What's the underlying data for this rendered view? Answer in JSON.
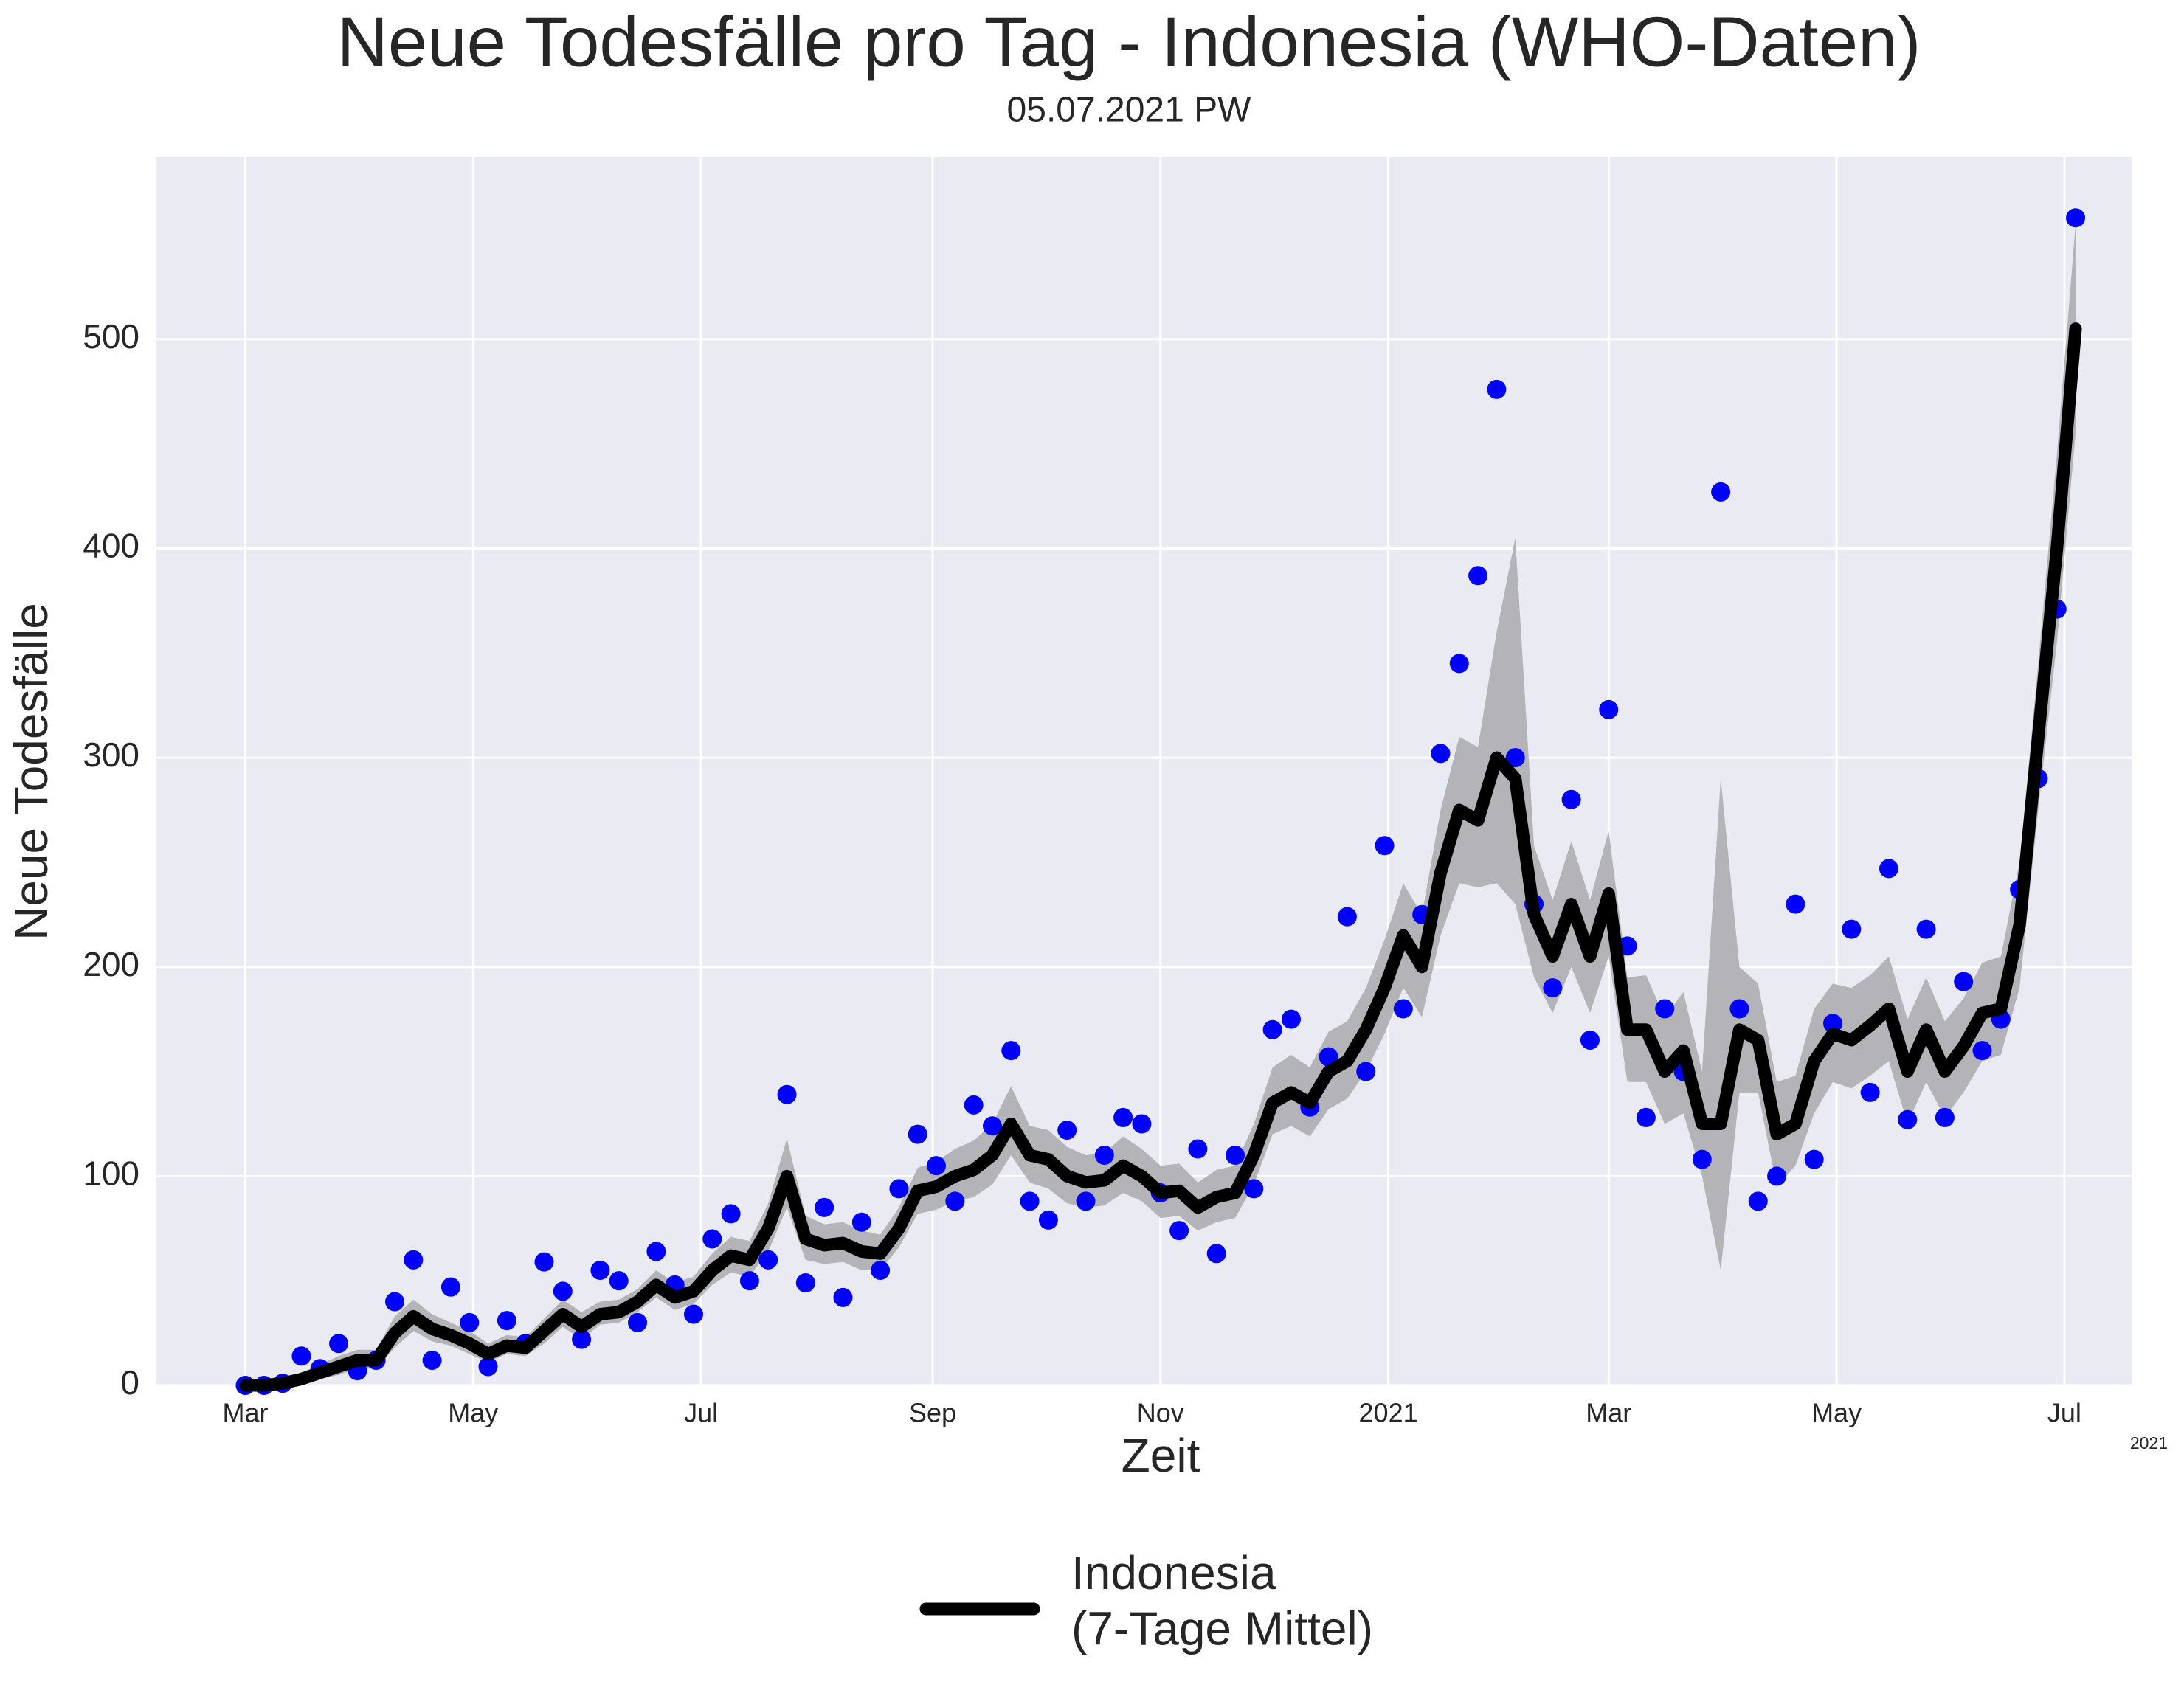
{
  "chart_data": {
    "type": "line",
    "title": "Neue Todesfälle pro Tag - Indonesia (WHO-Daten)",
    "subtitle": "05.07.2021 PW",
    "x_label": "Zeit",
    "y_label": "Neue Todesfälle",
    "x_offset_label": "2021",
    "background": "#eaeaf2",
    "grid": true,
    "legend_position": "bottom",
    "xlim": [
      -24,
      505
    ],
    "xticks": [
      {
        "value": 0,
        "label": "Mar"
      },
      {
        "value": 61,
        "label": "May"
      },
      {
        "value": 122,
        "label": "Jul"
      },
      {
        "value": 184,
        "label": "Sep"
      },
      {
        "value": 245,
        "label": "Nov"
      },
      {
        "value": 306,
        "label": "2021"
      },
      {
        "value": 365,
        "label": "Mar"
      },
      {
        "value": 426,
        "label": "May"
      },
      {
        "value": 487,
        "label": "Jul"
      }
    ],
    "ylim": [
      0,
      587
    ],
    "yticks": [
      0,
      100,
      200,
      300,
      400,
      500
    ],
    "x": [
      0,
      5,
      10,
      15,
      20,
      25,
      30,
      35,
      40,
      45,
      50,
      55,
      60,
      65,
      70,
      75,
      80,
      85,
      90,
      95,
      100,
      105,
      110,
      115,
      120,
      125,
      130,
      135,
      140,
      145,
      150,
      155,
      160,
      165,
      170,
      175,
      180,
      185,
      190,
      195,
      200,
      205,
      210,
      215,
      220,
      225,
      230,
      235,
      240,
      245,
      250,
      255,
      260,
      265,
      270,
      275,
      280,
      285,
      290,
      295,
      300,
      305,
      310,
      315,
      320,
      325,
      330,
      335,
      340,
      345,
      350,
      355,
      360,
      365,
      370,
      375,
      380,
      385,
      390,
      395,
      400,
      405,
      410,
      415,
      420,
      425,
      430,
      435,
      440,
      445,
      450,
      455,
      460,
      465,
      470,
      475,
      480,
      485,
      490
    ],
    "points": {
      "color": "#0000ff",
      "values": [
        0,
        0,
        1,
        14,
        8,
        20,
        7,
        12,
        40,
        60,
        12,
        47,
        30,
        9,
        31,
        20,
        59,
        45,
        22,
        55,
        50,
        30,
        64,
        48,
        34,
        70,
        82,
        50,
        60,
        139,
        49,
        85,
        42,
        78,
        55,
        94,
        120,
        105,
        88,
        134,
        124,
        160,
        88,
        79,
        122,
        88,
        110,
        128,
        125,
        92,
        74,
        113,
        63,
        110,
        94,
        170,
        175,
        133,
        157,
        224,
        150,
        258,
        180,
        225,
        302,
        345,
        387,
        476,
        300,
        230,
        190,
        280,
        165,
        323,
        210,
        128,
        180,
        150,
        108,
        427,
        180,
        88,
        100,
        230,
        108,
        173,
        218,
        140,
        247,
        127,
        218,
        128,
        193,
        160,
        175,
        237,
        290,
        371,
        558
      ]
    },
    "series": [
      {
        "name": "Indonesia\n(7-Tage Mittel)",
        "color": "#000000",
        "band_color": "#b4b4b8",
        "values": [
          0,
          0,
          1,
          3,
          6,
          9,
          12,
          12,
          25,
          33,
          27,
          24,
          20,
          15,
          19,
          18,
          26,
          34,
          28,
          34,
          35,
          40,
          48,
          42,
          45,
          55,
          62,
          60,
          75,
          100,
          70,
          67,
          68,
          64,
          63,
          75,
          93,
          95,
          100,
          103,
          110,
          125,
          110,
          108,
          100,
          97,
          98,
          105,
          100,
          92,
          93,
          85,
          90,
          92,
          110,
          135,
          140,
          135,
          150,
          155,
          170,
          190,
          215,
          200,
          245,
          275,
          270,
          300,
          290,
          225,
          205,
          230,
          205,
          235,
          170,
          170,
          150,
          160,
          125,
          125,
          170,
          165,
          120,
          125,
          155,
          168,
          165,
          172,
          180,
          150,
          170,
          150,
          162,
          178,
          180,
          220,
          310,
          400,
          505
        ],
        "band_lower": [
          0,
          0,
          0,
          1,
          3,
          5,
          8,
          8,
          18,
          26,
          21,
          19,
          15,
          11,
          15,
          14,
          20,
          28,
          22,
          29,
          30,
          35,
          42,
          36,
          39,
          48,
          54,
          52,
          64,
          85,
          60,
          58,
          59,
          55,
          55,
          66,
          82,
          84,
          88,
          90,
          96,
          110,
          97,
          94,
          87,
          85,
          86,
          92,
          88,
          80,
          81,
          74,
          78,
          80,
          96,
          120,
          124,
          119,
          132,
          137,
          150,
          168,
          190,
          176,
          215,
          240,
          238,
          240,
          230,
          195,
          178,
          200,
          178,
          205,
          145,
          145,
          125,
          130,
          100,
          55,
          140,
          140,
          95,
          105,
          130,
          145,
          142,
          148,
          155,
          125,
          145,
          128,
          140,
          155,
          158,
          190,
          275,
          355,
          455
        ],
        "band_upper": [
          1,
          2,
          3,
          6,
          10,
          14,
          17,
          17,
          33,
          41,
          34,
          30,
          26,
          20,
          24,
          23,
          32,
          41,
          35,
          40,
          41,
          46,
          55,
          49,
          52,
          63,
          71,
          69,
          87,
          118,
          81,
          77,
          78,
          74,
          72,
          85,
          104,
          107,
          113,
          117,
          125,
          143,
          124,
          122,
          114,
          110,
          111,
          119,
          113,
          105,
          106,
          97,
          103,
          105,
          125,
          152,
          158,
          152,
          169,
          174,
          190,
          213,
          240,
          225,
          275,
          310,
          305,
          360,
          405,
          258,
          232,
          260,
          232,
          265,
          195,
          196,
          176,
          188,
          150,
          290,
          200,
          192,
          145,
          148,
          180,
          192,
          190,
          196,
          205,
          175,
          195,
          174,
          185,
          202,
          205,
          250,
          345,
          445,
          555
        ]
      }
    ]
  }
}
